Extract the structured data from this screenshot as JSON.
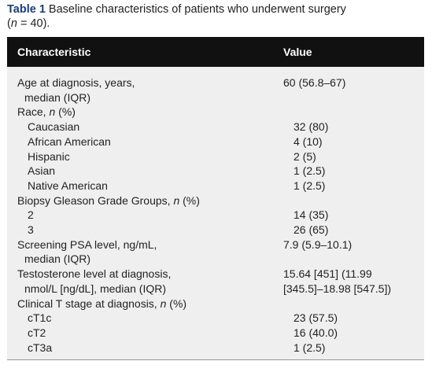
{
  "caption": {
    "label": "Table 1",
    "text": [
      "Baseline characteristics of patients who underwent surgery",
      "(",
      "n",
      " = 40)."
    ]
  },
  "table": {
    "header": [
      "Characteristic",
      "Value"
    ],
    "rows": [
      {
        "characteristic": [
          [
            "Age at diagnosis, years,"
          ],
          [
            "median (IQR)"
          ]
        ],
        "value": [
          "60 (56.8–67)"
        ]
      },
      {
        "characteristic": [
          [
            "Race, ",
            "n",
            " (%)"
          ]
        ],
        "subrows": [
          {
            "characteristic": [
              [
                "Caucasian"
              ]
            ],
            "value": [
              "32 (80)"
            ]
          },
          {
            "characteristic": [
              [
                "African American"
              ]
            ],
            "value": [
              "4 (10)"
            ]
          },
          {
            "characteristic": [
              [
                "Hispanic"
              ]
            ],
            "value": [
              "2 (5)"
            ]
          },
          {
            "characteristic": [
              [
                "Asian"
              ]
            ],
            "value": [
              "1 (2.5)"
            ]
          },
          {
            "characteristic": [
              [
                "Native American"
              ]
            ],
            "value": [
              "1 (2.5)"
            ]
          }
        ]
      },
      {
        "characteristic": [
          [
            "Biopsy Gleason Grade Groups, ",
            "n",
            " (%)"
          ]
        ],
        "subrows": [
          {
            "characteristic": [
              [
                "2"
              ]
            ],
            "value": [
              "14 (35)"
            ]
          },
          {
            "characteristic": [
              [
                "3"
              ]
            ],
            "value": [
              "26 (65)"
            ]
          }
        ]
      },
      {
        "characteristic": [
          [
            "Screening PSA level, ng/mL,"
          ],
          [
            "median (IQR)"
          ]
        ],
        "value": [
          "7.9 (5.9–10.1)"
        ]
      },
      {
        "characteristic": [
          [
            "Testosterone level at diagnosis,"
          ],
          [
            "nmol/L [ng/dL], median (IQR)"
          ]
        ],
        "value": [
          "15.64 [451] (11.99",
          "[345.5]–18.98 [547.5])"
        ]
      },
      {
        "characteristic": [
          [
            "Clinical T stage at diagnosis, ",
            "n",
            " (%)"
          ]
        ],
        "subrows": [
          {
            "characteristic": [
              [
                "cT1c"
              ]
            ],
            "value": [
              "23 (57.5)"
            ]
          },
          {
            "characteristic": [
              [
                "cT2"
              ]
            ],
            "value": [
              "16 (40.0)"
            ]
          },
          {
            "characteristic": [
              [
                "cT3a"
              ]
            ],
            "value": [
              "1 (2.5)"
            ]
          }
        ]
      }
    ]
  }
}
